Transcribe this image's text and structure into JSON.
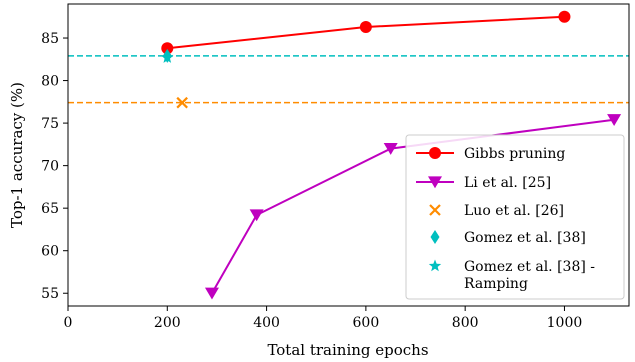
{
  "chart_data": {
    "type": "line",
    "xlabel": "Total training epochs",
    "ylabel": "Top-1 accuracy (%)",
    "xlim": [
      0,
      1130
    ],
    "ylim": [
      53.5,
      89
    ],
    "xticks": [
      0,
      200,
      400,
      600,
      800,
      1000
    ],
    "yticks": [
      55,
      60,
      65,
      70,
      75,
      80,
      85
    ],
    "grid": false,
    "legend_position": "lower-right",
    "series": [
      {
        "name": "Gibbs pruning",
        "color": "#ff0000",
        "marker": "circle",
        "line": "solid",
        "x": [
          200,
          600,
          1000
        ],
        "y": [
          83.8,
          86.3,
          87.5
        ]
      },
      {
        "name": "Li et al. [25]",
        "color": "#bf00bf",
        "marker": "triangle-down",
        "line": "solid",
        "x": [
          290,
          380,
          650,
          1100
        ],
        "y": [
          55.0,
          64.2,
          72.0,
          75.4
        ]
      },
      {
        "name": "Luo et al. [26]",
        "color": "#ff8c00",
        "marker": "x",
        "line": "dashed-horizontal",
        "x": [
          230
        ],
        "y": [
          77.4
        ]
      },
      {
        "name": "Gomez et al. [38]",
        "color": "#00bfbf",
        "marker": "thin-diamond",
        "line": "dashed-horizontal",
        "x": [
          200
        ],
        "y": [
          82.9
        ]
      },
      {
        "name": "Gomez et al. [38] - Ramping",
        "color": "#00bfbf",
        "marker": "star",
        "line": "none",
        "x": [
          200
        ],
        "y": [
          82.7
        ]
      }
    ],
    "legend_labels": [
      [
        "Gibbs pruning"
      ],
      [
        "Li et al. [25]"
      ],
      [
        "Luo et al. [26]"
      ],
      [
        "Gomez et al. [38]"
      ],
      [
        "Gomez et al. [38] -",
        "Ramping"
      ]
    ]
  }
}
